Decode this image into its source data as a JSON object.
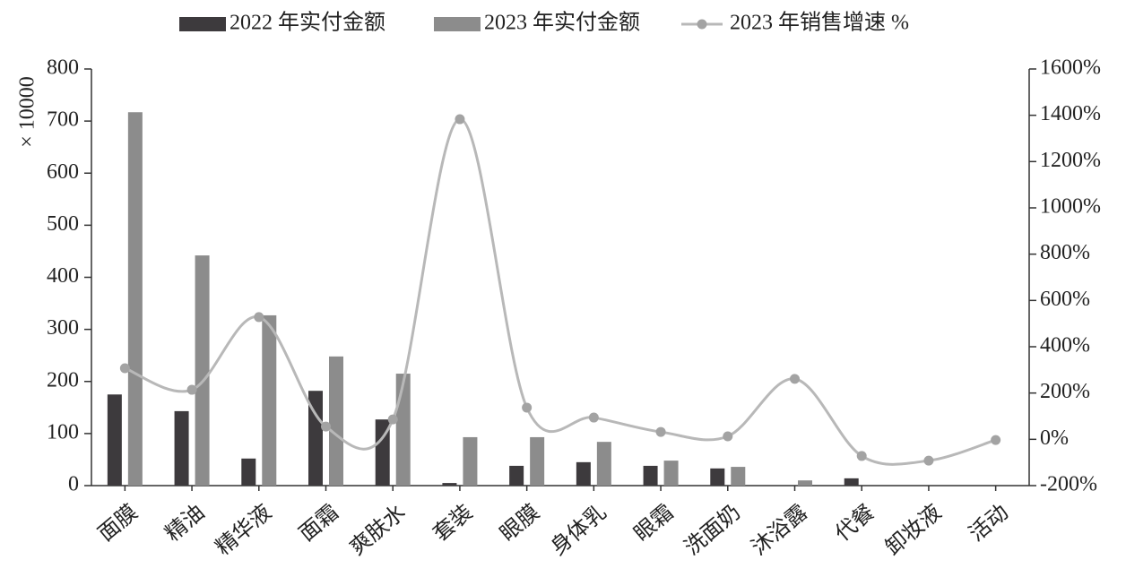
{
  "chart_data": {
    "type": "bar-line",
    "y_label": "× 10000",
    "categories": [
      "面膜",
      "精油",
      "精华液",
      "面霜",
      "爽肤水",
      "套装",
      "眼膜",
      "身体乳",
      "眼霜",
      "洗面奶",
      "沐浴露",
      "代餐",
      "卸妆液",
      "活动"
    ],
    "series": [
      {
        "name": "2022 年实付金额",
        "type": "bar",
        "color": "#3d3a3d",
        "values": [
          175,
          143,
          52,
          182,
          127,
          5,
          38,
          45,
          38,
          33,
          0,
          14,
          0,
          0
        ]
      },
      {
        "name": "2023 年实付金额",
        "type": "bar",
        "color": "#8c8c8c",
        "values": [
          717,
          442,
          327,
          248,
          215,
          93,
          93,
          84,
          48,
          36,
          10,
          0,
          0,
          0
        ]
      },
      {
        "name": "2023 年销售增速 %",
        "type": "line",
        "axis": "y2",
        "color": "#b8b8b8",
        "marker_color": "#a3a3a3",
        "values": [
          307,
          214,
          528,
          55,
          86,
          1383,
          137,
          94,
          32,
          13,
          261,
          -72,
          -92,
          -3
        ]
      }
    ],
    "ylim": [
      0,
      800
    ],
    "yticks": [
      0,
      100,
      200,
      300,
      400,
      500,
      600,
      700,
      800
    ],
    "y2lim": [
      -200,
      1600
    ],
    "y2ticks": [
      {
        "value": -200,
        "label": "-200%"
      },
      {
        "value": 0,
        "label": "0%"
      },
      {
        "value": 200,
        "label": "200%"
      },
      {
        "value": 400,
        "label": "400%"
      },
      {
        "value": 600,
        "label": "600%"
      },
      {
        "value": 800,
        "label": "800%"
      },
      {
        "value": 1000,
        "label": "1000%"
      },
      {
        "value": 1200,
        "label": "1200%"
      },
      {
        "value": 1400,
        "label": "1400%"
      },
      {
        "value": 1600,
        "label": "1600%"
      }
    ],
    "grid": false,
    "legend": "top"
  }
}
